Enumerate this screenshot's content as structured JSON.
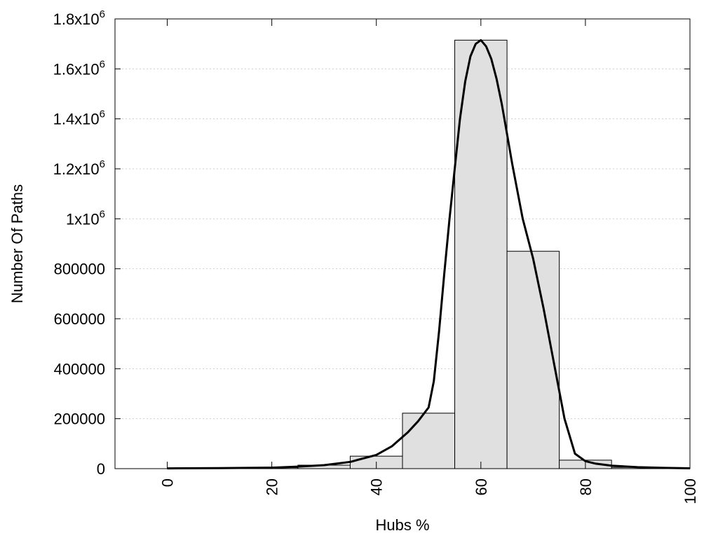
{
  "chart_data": {
    "type": "bar",
    "xlabel": "Hubs %",
    "ylabel": "Number Of Paths",
    "xlim": [
      -10,
      100
    ],
    "ylim": [
      0,
      1800000
    ],
    "grid": "horizontal dotted",
    "legend": "none",
    "x_ticks": [
      {
        "value": 0,
        "label": "0"
      },
      {
        "value": 20,
        "label": "20"
      },
      {
        "value": 40,
        "label": "40"
      },
      {
        "value": 60,
        "label": "60"
      },
      {
        "value": 80,
        "label": "80"
      },
      {
        "value": 100,
        "label": "100"
      }
    ],
    "y_ticks": [
      {
        "value": 0,
        "base": "0",
        "sup": ""
      },
      {
        "value": 200000,
        "base": "200000",
        "sup": ""
      },
      {
        "value": 400000,
        "base": "400000",
        "sup": ""
      },
      {
        "value": 600000,
        "base": "600000",
        "sup": ""
      },
      {
        "value": 800000,
        "base": "800000",
        "sup": ""
      },
      {
        "value": 1000000,
        "base": "1x10",
        "sup": "6"
      },
      {
        "value": 1200000,
        "base": "1.2x10",
        "sup": "6"
      },
      {
        "value": 1400000,
        "base": "1.4x10",
        "sup": "6"
      },
      {
        "value": 1600000,
        "base": "1.6x10",
        "sup": "6"
      },
      {
        "value": 1800000,
        "base": "1.8x10",
        "sup": "6"
      }
    ],
    "bar_width": 10,
    "bars": [
      {
        "x": 0,
        "value": 0
      },
      {
        "x": 10,
        "value": 1000
      },
      {
        "x": 20,
        "value": 4000
      },
      {
        "x": 30,
        "value": 14000
      },
      {
        "x": 40,
        "value": 50000
      },
      {
        "x": 50,
        "value": 222000
      },
      {
        "x": 60,
        "value": 1715000
      },
      {
        "x": 70,
        "value": 870000
      },
      {
        "x": 80,
        "value": 34000
      },
      {
        "x": 90,
        "value": 5000
      }
    ],
    "curve": {
      "type": "line",
      "x": [
        0,
        10,
        20,
        25,
        30,
        35,
        40,
        43,
        46,
        48,
        50,
        51,
        52,
        53,
        54,
        55,
        56,
        57,
        58,
        59,
        60,
        61,
        62,
        63,
        64,
        65,
        66,
        67,
        68,
        70,
        72,
        74,
        76,
        78,
        80,
        82,
        85,
        90,
        95,
        100
      ],
      "y": [
        1000,
        2000,
        4000,
        8000,
        14000,
        27000,
        55000,
        90000,
        145000,
        190000,
        245000,
        350000,
        550000,
        780000,
        1000000,
        1200000,
        1400000,
        1550000,
        1650000,
        1700000,
        1715000,
        1690000,
        1640000,
        1560000,
        1460000,
        1340000,
        1220000,
        1110000,
        1000000,
        840000,
        640000,
        420000,
        200000,
        60000,
        30000,
        20000,
        12000,
        6000,
        3000,
        1500
      ]
    }
  }
}
